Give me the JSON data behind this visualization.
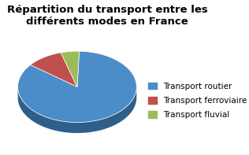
{
  "title": "Répartition du transport entre les\ndifférents modes en France",
  "labels": [
    "Transport routier",
    "Transport ferroviaire",
    "Transport fluvial"
  ],
  "values": [
    85,
    10,
    5
  ],
  "colors": [
    "#4B8DC8",
    "#C0504D",
    "#9BBB59"
  ],
  "shadow_colors": [
    "#2E5F8A",
    "#8B3330",
    "#6A8A3A"
  ],
  "startangle": 88,
  "title_fontsize": 9.5,
  "legend_fontsize": 7.5,
  "background_color": "#FFFFFF"
}
